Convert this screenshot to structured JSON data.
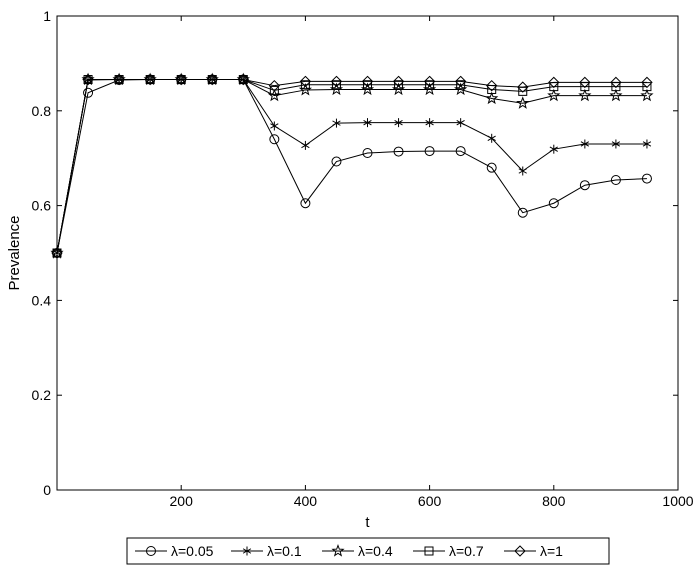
{
  "chart_data": {
    "type": "line",
    "title": "",
    "xlabel": "t",
    "ylabel": "Prevalence",
    "xlim": [
      0,
      1000
    ],
    "ylim": [
      0,
      1
    ],
    "xticks": [
      200,
      400,
      600,
      800,
      1000
    ],
    "xtick_labels": [
      "200",
      "400",
      "600",
      "800",
      "1000"
    ],
    "yticks": [
      0,
      0.2,
      0.4,
      0.6,
      0.8,
      1
    ],
    "ytick_labels": [
      "0",
      "0.2",
      "0.4",
      "0.6",
      "0.8",
      "1"
    ],
    "grid": false,
    "legend_position": "bottom",
    "x": [
      0,
      50,
      100,
      150,
      200,
      250,
      300,
      350,
      400,
      450,
      500,
      550,
      600,
      650,
      700,
      750,
      800,
      850,
      900,
      950
    ],
    "series": [
      {
        "name": "λ=0.05",
        "marker": "circle",
        "color": "#000000",
        "values": [
          0.5,
          0.838,
          0.865,
          0.866,
          0.866,
          0.866,
          0.866,
          0.74,
          0.605,
          0.693,
          0.711,
          0.714,
          0.715,
          0.715,
          0.68,
          0.585,
          0.605,
          0.643,
          0.654,
          0.657
        ]
      },
      {
        "name": "λ=0.1",
        "marker": "asterisk",
        "color": "#000000",
        "values": [
          0.5,
          0.865,
          0.866,
          0.866,
          0.866,
          0.866,
          0.866,
          0.768,
          0.727,
          0.774,
          0.775,
          0.775,
          0.775,
          0.775,
          0.742,
          0.673,
          0.719,
          0.73,
          0.73,
          0.73
        ]
      },
      {
        "name": "λ=0.4",
        "marker": "star",
        "color": "#000000",
        "values": [
          0.5,
          0.866,
          0.866,
          0.866,
          0.866,
          0.866,
          0.866,
          0.832,
          0.844,
          0.845,
          0.845,
          0.845,
          0.845,
          0.845,
          0.826,
          0.816,
          0.832,
          0.832,
          0.832,
          0.832
        ]
      },
      {
        "name": "λ=0.7",
        "marker": "square",
        "color": "#000000",
        "values": [
          0.5,
          0.866,
          0.866,
          0.866,
          0.866,
          0.866,
          0.866,
          0.843,
          0.855,
          0.855,
          0.855,
          0.855,
          0.855,
          0.855,
          0.845,
          0.841,
          0.851,
          0.851,
          0.851,
          0.851
        ]
      },
      {
        "name": "λ=1",
        "marker": "diamond",
        "color": "#000000",
        "values": [
          0.5,
          0.866,
          0.866,
          0.866,
          0.866,
          0.866,
          0.866,
          0.853,
          0.862,
          0.862,
          0.862,
          0.862,
          0.862,
          0.862,
          0.853,
          0.85,
          0.86,
          0.86,
          0.86,
          0.86
        ]
      }
    ]
  }
}
